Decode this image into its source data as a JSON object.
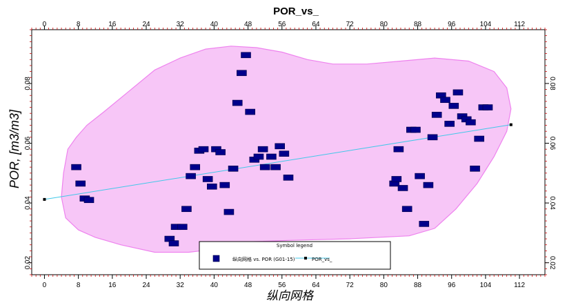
{
  "chart_data": {
    "type": "scatter",
    "title": "POR_vs_",
    "xlabel": "纵向网格",
    "ylabel": "POR, [m3/m3]",
    "xlim": [
      -3,
      118
    ],
    "ylim": [
      0.016,
      0.098
    ],
    "xticks": [
      "0",
      "8",
      "16",
      "24",
      "32",
      "40",
      "48",
      "56",
      "64",
      "72",
      "80",
      "88",
      "96",
      "104",
      "112"
    ],
    "xtick_values": [
      0,
      8,
      16,
      24,
      32,
      40,
      48,
      56,
      64,
      72,
      80,
      88,
      96,
      104,
      112
    ],
    "yticks": [
      "0.02",
      "0.04",
      "0.06",
      "0.08"
    ],
    "ytick_values": [
      0.02,
      0.04,
      0.06,
      0.08
    ],
    "grid": false,
    "legend_title": "Symbol legend",
    "legend_position": "bottom-center",
    "series": [
      {
        "name": "纵向网格 vs. POR (G01-15)",
        "kind": "scatter",
        "color": "#00008b",
        "points": [
          [
            7.5,
            0.052
          ],
          [
            8.5,
            0.0465
          ],
          [
            9.5,
            0.0415
          ],
          [
            10.5,
            0.041
          ],
          [
            29.5,
            0.028
          ],
          [
            30.5,
            0.0265
          ],
          [
            31.0,
            0.032
          ],
          [
            32.5,
            0.032
          ],
          [
            33.5,
            0.038
          ],
          [
            34.5,
            0.049
          ],
          [
            35.5,
            0.052
          ],
          [
            36.5,
            0.0575
          ],
          [
            37.5,
            0.058
          ],
          [
            38.5,
            0.048
          ],
          [
            39.5,
            0.0455
          ],
          [
            40.5,
            0.058
          ],
          [
            41.5,
            0.057
          ],
          [
            42.5,
            0.046
          ],
          [
            43.5,
            0.037
          ],
          [
            44.5,
            0.0515
          ],
          [
            45.5,
            0.0735
          ],
          [
            46.5,
            0.0835
          ],
          [
            47.5,
            0.0895
          ],
          [
            48.5,
            0.0705
          ],
          [
            49.5,
            0.0545
          ],
          [
            50.5,
            0.0555
          ],
          [
            51.5,
            0.058
          ],
          [
            52.0,
            0.052
          ],
          [
            53.5,
            0.0555
          ],
          [
            54.5,
            0.052
          ],
          [
            55.5,
            0.059
          ],
          [
            56.5,
            0.0565
          ],
          [
            57.5,
            0.0485
          ],
          [
            82.5,
            0.0465
          ],
          [
            83.0,
            0.048
          ],
          [
            83.5,
            0.058
          ],
          [
            84.5,
            0.045
          ],
          [
            85.5,
            0.038
          ],
          [
            86.5,
            0.0645
          ],
          [
            87.5,
            0.0645
          ],
          [
            88.5,
            0.049
          ],
          [
            89.5,
            0.033
          ],
          [
            90.5,
            0.046
          ],
          [
            91.5,
            0.062
          ],
          [
            92.5,
            0.0695
          ],
          [
            93.5,
            0.076
          ],
          [
            94.5,
            0.0745
          ],
          [
            95.5,
            0.0665
          ],
          [
            96.5,
            0.0725
          ],
          [
            97.5,
            0.077
          ],
          [
            98.5,
            0.069
          ],
          [
            99.5,
            0.068
          ],
          [
            100.5,
            0.067
          ],
          [
            101.5,
            0.0515
          ],
          [
            102.5,
            0.0615
          ],
          [
            103.5,
            0.072
          ],
          [
            104.5,
            0.072
          ]
        ]
      },
      {
        "name": "POR_vs_",
        "kind": "line",
        "color": "#40c8e8",
        "points": [
          [
            0,
            0.0412
          ],
          [
            110,
            0.0662
          ]
        ]
      }
    ],
    "envelope": {
      "fill": "#f7c6f7",
      "stroke": "#ee82ee",
      "points": [
        [
          7.5,
          0.062
        ],
        [
          10,
          0.066
        ],
        [
          14,
          0.0705
        ],
        [
          20,
          0.0775
        ],
        [
          26,
          0.0845
        ],
        [
          32,
          0.0885
        ],
        [
          38,
          0.0915
        ],
        [
          44,
          0.0925
        ],
        [
          50,
          0.092
        ],
        [
          56,
          0.0905
        ],
        [
          62,
          0.088
        ],
        [
          68,
          0.0865
        ],
        [
          76,
          0.0865
        ],
        [
          84,
          0.0875
        ],
        [
          92,
          0.0885
        ],
        [
          100,
          0.0875
        ],
        [
          106,
          0.084
        ],
        [
          109,
          0.0785
        ],
        [
          110,
          0.0715
        ],
        [
          109,
          0.064
        ],
        [
          106,
          0.0555
        ],
        [
          102,
          0.0465
        ],
        [
          97,
          0.038
        ],
        [
          92,
          0.0315
        ],
        [
          86,
          0.029
        ],
        [
          72,
          0.028
        ],
        [
          58,
          0.0275
        ],
        [
          48,
          0.027
        ],
        [
          40,
          0.0245
        ],
        [
          34,
          0.0235
        ],
        [
          26,
          0.0235
        ],
        [
          18,
          0.026
        ],
        [
          12,
          0.0285
        ],
        [
          8,
          0.031
        ],
        [
          5,
          0.035
        ],
        [
          4,
          0.042
        ],
        [
          4.5,
          0.05
        ],
        [
          5.5,
          0.058
        ]
      ]
    }
  }
}
